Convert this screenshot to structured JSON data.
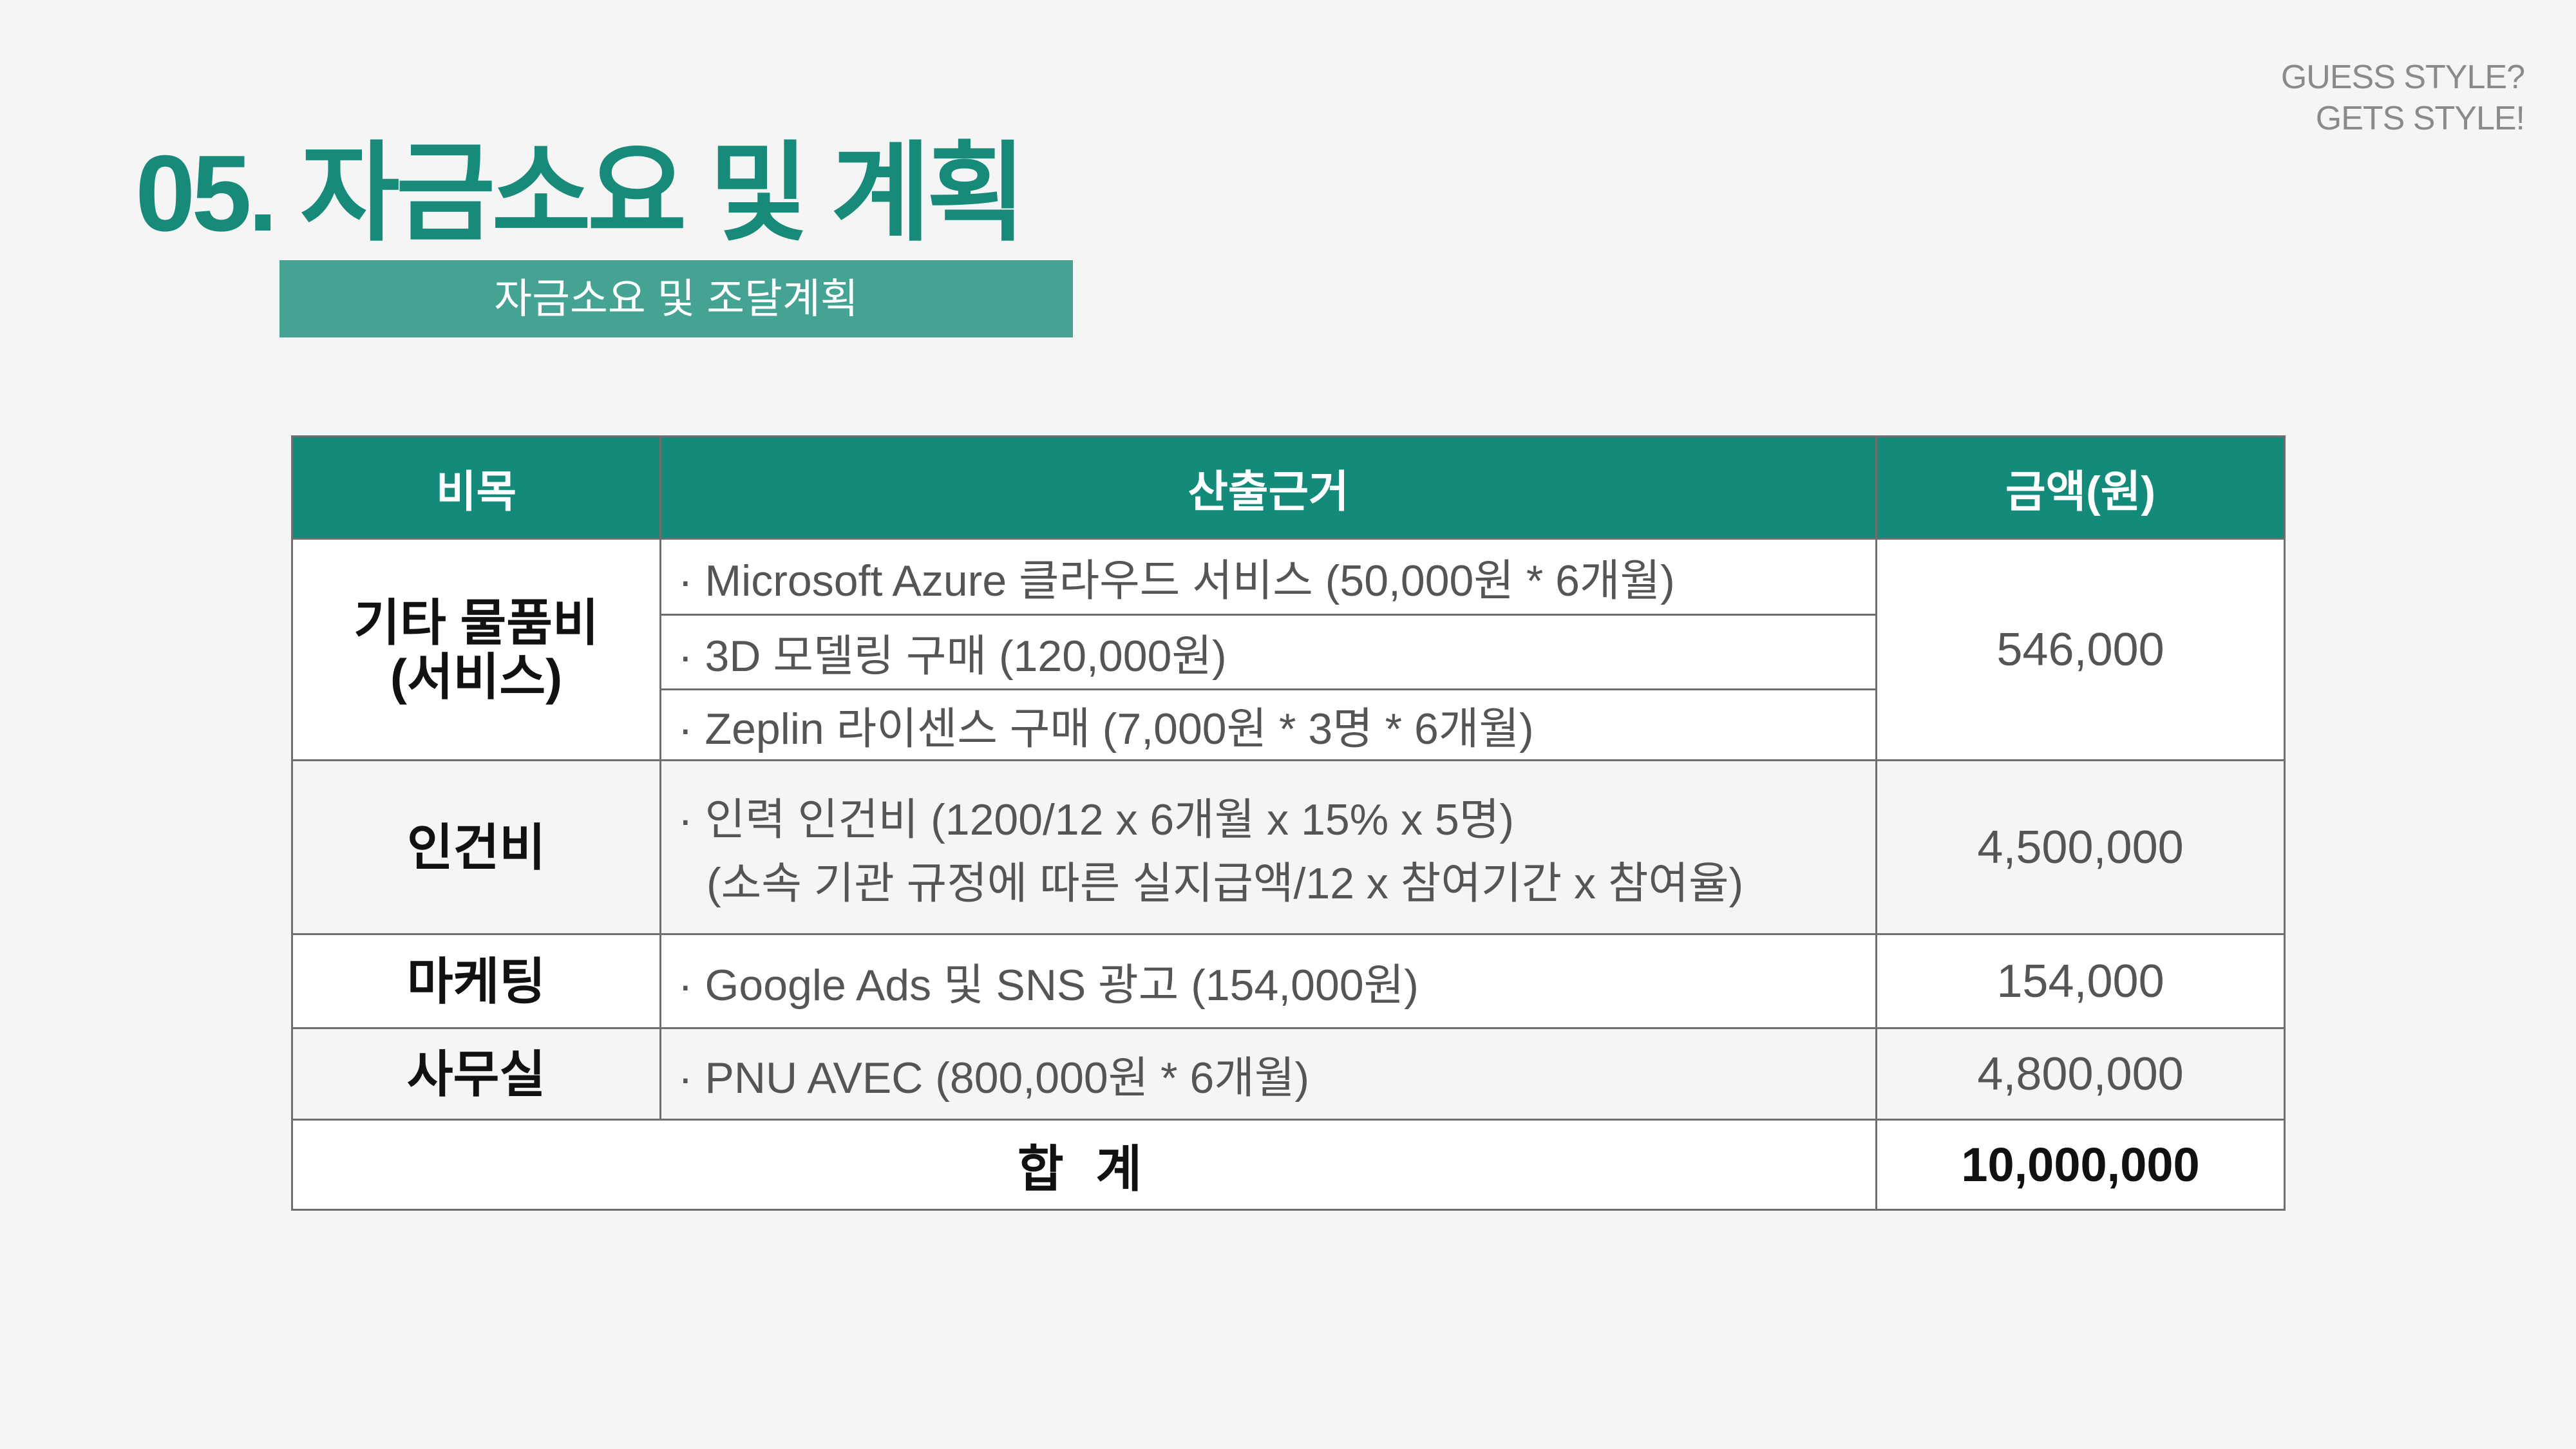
{
  "brand": {
    "line1": "GUESS STYLE?",
    "line2": "GETS STYLE!"
  },
  "page_title": "05. 자금소요 및 계획",
  "subtitle": "자금소요 및 조달계획",
  "table": {
    "headers": {
      "item": "비목",
      "basis": "산출근거",
      "amount": "금액(원)"
    },
    "rows": {
      "misc": {
        "item_line1": "기타 물품비",
        "item_line2": "(서비스)",
        "basis": [
          "· Microsoft Azure 클라우드 서비스 (50,000원 * 6개월)",
          "· 3D 모델링 구매 (120,000원)",
          "· Zeplin 라이센스 구매 (7,000원 * 3명 * 6개월)"
        ],
        "amount": "546,000"
      },
      "labor": {
        "item": "인건비",
        "basis_line1": "· 인력 인건비 (1200/12 x 6개월 x 15% x 5명)",
        "basis_line2": "(소속 기관 규정에 따른 실지급액/12 x 참여기간 x 참여율)",
        "amount": "4,500,000"
      },
      "marketing": {
        "item": "마케팅",
        "basis": "· Google Ads 및 SNS 광고 (154,000원)",
        "amount": "154,000"
      },
      "office": {
        "item": "사무실",
        "basis": "· PNU AVEC (800,000원 * 6개월)",
        "amount": "4,800,000"
      }
    },
    "total": {
      "label": "합 계",
      "amount": "10,000,000"
    }
  },
  "colors": {
    "title": "#178a7a",
    "header_bg": "#138a7a",
    "subtitle_bg": "#45a394",
    "background": "#f5f5f5"
  }
}
